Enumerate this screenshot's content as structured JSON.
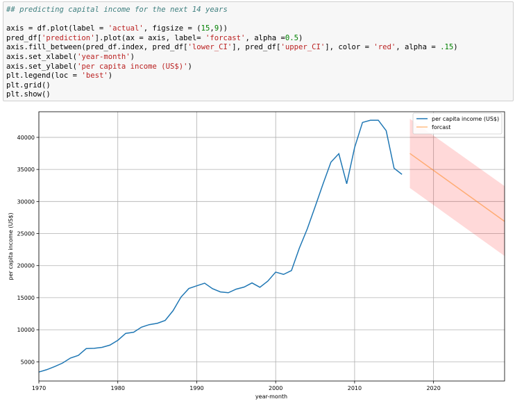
{
  "code_cell": {
    "lines": [
      [
        {
          "t": "## predicting capital income for the next 14 years",
          "c": "cm"
        }
      ],
      [
        {
          "t": "",
          "c": ""
        }
      ],
      [
        {
          "t": "axis = df.plot(label = ",
          "c": ""
        },
        {
          "t": "'actual'",
          "c": "st"
        },
        {
          "t": ", figsize = (",
          "c": ""
        },
        {
          "t": "15",
          "c": "nu"
        },
        {
          "t": ",",
          "c": ""
        },
        {
          "t": "9",
          "c": "nu"
        },
        {
          "t": "))",
          "c": ""
        }
      ],
      [
        {
          "t": "pred_df[",
          "c": ""
        },
        {
          "t": "'prediction'",
          "c": "st"
        },
        {
          "t": "].plot(ax = axis, label= ",
          "c": ""
        },
        {
          "t": "'forcast'",
          "c": "st"
        },
        {
          "t": ", alpha =",
          "c": ""
        },
        {
          "t": "0.5",
          "c": "nu"
        },
        {
          "t": ")",
          "c": ""
        }
      ],
      [
        {
          "t": "axis.fill_between(pred_df.index, pred_df[",
          "c": ""
        },
        {
          "t": "'lower_CI'",
          "c": "st"
        },
        {
          "t": "], pred_df[",
          "c": ""
        },
        {
          "t": "'upper_CI'",
          "c": "st"
        },
        {
          "t": "], color = ",
          "c": ""
        },
        {
          "t": "'red'",
          "c": "st"
        },
        {
          "t": ", alpha = ",
          "c": ""
        },
        {
          "t": ".15",
          "c": "nu"
        },
        {
          "t": ")",
          "c": ""
        }
      ],
      [
        {
          "t": "axis.set_xlabel(",
          "c": ""
        },
        {
          "t": "'year-month'",
          "c": "st"
        },
        {
          "t": ")",
          "c": ""
        }
      ],
      [
        {
          "t": "axis.set_ylabel(",
          "c": ""
        },
        {
          "t": "'per capita income (US$)'",
          "c": "st"
        },
        {
          "t": ")",
          "c": ""
        }
      ],
      [
        {
          "t": "plt.legend(loc = ",
          "c": ""
        },
        {
          "t": "'best'",
          "c": "st"
        },
        {
          "t": ")",
          "c": ""
        }
      ],
      [
        {
          "t": "plt.grid()",
          "c": ""
        }
      ],
      [
        {
          "t": "plt.show()",
          "c": ""
        }
      ]
    ]
  },
  "chart_data": {
    "type": "line",
    "title": "",
    "xlabel": "year-month",
    "ylabel": "per capita income (US$)",
    "xlim": [
      1970,
      2029
    ],
    "ylim": [
      2000,
      44000
    ],
    "xticks": [
      1970,
      1980,
      1990,
      2000,
      2010,
      2020
    ],
    "yticks": [
      5000,
      10000,
      15000,
      20000,
      25000,
      30000,
      35000,
      40000
    ],
    "grid": true,
    "legend_position": "top-right",
    "series": [
      {
        "name": "per capita income (US$)",
        "color": "#1f77b4",
        "x": [
          1970,
          1971,
          1972,
          1973,
          1974,
          1975,
          1976,
          1977,
          1978,
          1979,
          1980,
          1981,
          1982,
          1983,
          1984,
          1985,
          1986,
          1987,
          1988,
          1989,
          1990,
          1991,
          1992,
          1993,
          1994,
          1995,
          1996,
          1997,
          1998,
          1999,
          2000,
          2001,
          2002,
          2003,
          2004,
          2005,
          2006,
          2007,
          2008,
          2009,
          2010,
          2011,
          2012,
          2013,
          2014,
          2015,
          2016
        ],
        "y": [
          3400,
          3770,
          4250,
          4800,
          5580,
          6000,
          7060,
          7100,
          7250,
          7600,
          8350,
          9430,
          9600,
          10400,
          10800,
          11000,
          11450,
          12970,
          15080,
          16430,
          16850,
          17260,
          16400,
          15900,
          15770,
          16330,
          16650,
          17300,
          16620,
          17580,
          18990,
          18630,
          19230,
          22730,
          25720,
          29200,
          32740,
          36140,
          37450,
          32760,
          38420,
          42330,
          42670,
          42680,
          41040,
          35180,
          34230
        ]
      },
      {
        "name": "forcast",
        "color": "#ff7f0e",
        "alpha": 0.5,
        "x": [
          2017,
          2029
        ],
        "y": [
          37500,
          26900
        ]
      }
    ],
    "confidence_band": {
      "color": "#ff0000",
      "alpha": 0.15,
      "x": [
        2017,
        2029
      ],
      "lower": [
        32100,
        21500
      ],
      "upper": [
        42900,
        32400
      ]
    }
  }
}
